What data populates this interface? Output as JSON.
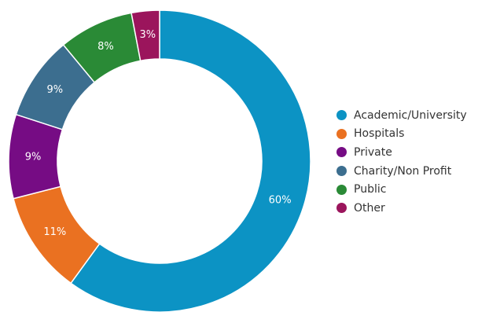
{
  "chart_data": {
    "type": "pie",
    "variant": "donut",
    "title": "",
    "start_angle_deg": 0,
    "direction": "clockwise",
    "legend_position": "right",
    "slices": [
      {
        "name": "Academic/University",
        "value": 60,
        "label": "60%",
        "color": "#0c93c4"
      },
      {
        "name": "Hospitals",
        "value": 11,
        "label": "11%",
        "color": "#ea7121"
      },
      {
        "name": "Private",
        "value": 9,
        "label": "9%",
        "color": "#760c84"
      },
      {
        "name": "Charity/Non Profit",
        "value": 9,
        "label": "9%",
        "color": "#3c6e8f"
      },
      {
        "name": "Public",
        "value": 8,
        "label": "8%",
        "color": "#2a8a36"
      },
      {
        "name": "Other",
        "value": 3,
        "label": "3%",
        "color": "#9b155c"
      }
    ]
  }
}
